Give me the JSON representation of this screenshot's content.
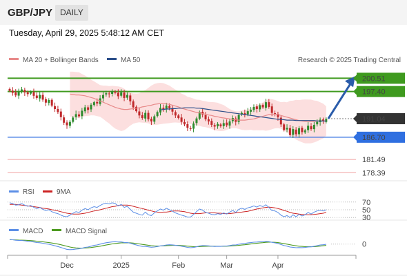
{
  "header": {
    "symbol": "GBP/JPY",
    "period": "DAILY",
    "timestamp": "Tuesday, April 29, 2025 5:48:12 AM CET"
  },
  "legend": {
    "ma20": "MA 20 + Bollinger Bands",
    "ma50": "MA 50",
    "credit": "Research © 2025 Trading Central",
    "rsi": "RSI",
    "rsi_ma": "9MA",
    "macd": "MACD",
    "macd_signal": "MACD Signal"
  },
  "colors": {
    "ma20": "#e88a8a",
    "ma50": "#2c4f8a",
    "bands": "#fbd9d9",
    "resistance": "#3f9a1f",
    "support": "#2f6fe0",
    "target_low": "#e36060",
    "current": "#333333",
    "bull": "#2e8b2e",
    "bear": "#c0292b",
    "rsi": "#5b8ee6",
    "rsi_ma": "#cc2222",
    "macd": "#5b8ee6",
    "macd_signal": "#4c9a1f",
    "arrow": "#2a5caa"
  },
  "chart_data": [
    {
      "type": "candlestick",
      "title": "GBP/JPY",
      "ylim": [
        176.5,
        203.0
      ],
      "x_ticks": [
        "Dec",
        "2025",
        "Feb",
        "Mar",
        "Apr"
      ],
      "price_levels": [
        {
          "label": "200.51",
          "value": 200.51,
          "role": "resistance"
        },
        {
          "label": "197.40",
          "value": 197.4,
          "role": "resistance"
        },
        {
          "label": "191.04",
          "value": 191.04,
          "role": "current"
        },
        {
          "label": "186.70",
          "value": 186.7,
          "role": "support"
        },
        {
          "label": "181.49",
          "value": 181.49,
          "role": "support"
        },
        {
          "label": "178.39",
          "value": 178.39,
          "role": "support"
        }
      ],
      "closes": [
        197.6,
        197.1,
        196.5,
        197.4,
        197.9,
        197.2,
        196.8,
        197.3,
        196.4,
        195.9,
        196.6,
        195.5,
        194.8,
        195.4,
        194.1,
        193.3,
        192.6,
        191.4,
        190.1,
        189.5,
        190.3,
        191.3,
        192.1,
        191.6,
        192.9,
        193.7,
        193.1,
        194.3,
        194.9,
        194.6,
        195.8,
        196.6,
        197.0,
        196.8,
        197.5,
        197.1,
        196.3,
        197.2,
        195.9,
        196.6,
        195.1,
        193.7,
        192.8,
        191.8,
        191.2,
        192.4,
        190.9,
        190.4,
        191.6,
        192.6,
        193.6,
        193.1,
        194.1,
        193.5,
        192.7,
        191.8,
        191.2,
        190.3,
        189.7,
        188.9,
        188.7,
        189.9,
        191.1,
        192.6,
        192.0,
        190.9,
        190.4,
        189.6,
        189.2,
        189.8,
        189.3,
        190.0,
        189.5,
        190.4,
        191.2,
        190.3,
        191.9,
        192.4,
        192.0,
        192.8,
        193.1,
        193.8,
        193.3,
        194.2,
        193.7,
        194.9,
        193.8,
        192.4,
        192.1,
        191.4,
        189.7,
        188.4,
        188.9,
        187.2,
        188.6,
        187.4,
        188.8,
        187.9,
        188.3,
        189.4,
        188.6,
        189.6,
        190.3,
        190.8,
        190.4,
        191.0
      ],
      "ma20": [
        196.8,
        196.7,
        196.6,
        196.6,
        196.5,
        196.4,
        196.2,
        196.0,
        195.8,
        195.5,
        195.2,
        194.9,
        194.6,
        194.3,
        194.0,
        193.7,
        193.5,
        193.3,
        193.2,
        193.2,
        193.3,
        193.4,
        193.5,
        193.6,
        193.8,
        193.9,
        194.1,
        194.2,
        194.4,
        194.5,
        194.6,
        194.6,
        194.5,
        194.4,
        194.2,
        194.0,
        193.8,
        193.5,
        193.3,
        193.1,
        192.9,
        192.7,
        192.5,
        192.4,
        192.2,
        192.1,
        191.9,
        191.8,
        191.6,
        191.5,
        191.3,
        191.2,
        191.1,
        191.0,
        190.9,
        190.8,
        190.7,
        190.7,
        190.7,
        190.8,
        190.9,
        191.0,
        191.2,
        191.4,
        191.6,
        191.8,
        192.0,
        192.1,
        192.1,
        192.0,
        191.8,
        191.6,
        191.4,
        191.2,
        191.0,
        190.8,
        190.6,
        190.5,
        190.4,
        190.4,
        190.4,
        190.4,
        190.5,
        190.5,
        190.5,
        190.5
      ],
      "ma20_start_index": 20,
      "ma50": [
        193.1,
        193.2,
        193.3,
        193.3,
        193.4,
        193.4,
        193.5,
        193.5,
        193.6,
        193.6,
        193.6,
        193.6,
        193.5,
        193.5,
        193.4,
        193.3,
        193.2,
        193.1,
        193.0,
        192.9,
        192.8,
        192.7,
        192.6,
        192.5,
        192.4,
        192.3,
        192.2,
        192.1,
        192.0,
        191.9,
        191.8,
        191.7,
        191.6,
        191.5,
        191.4,
        191.3,
        191.2,
        191.1,
        191.0,
        190.9,
        190.9,
        190.8,
        190.7,
        190.7,
        190.7,
        190.6,
        190.6,
        190.6,
        190.6,
        190.6,
        190.6,
        190.6,
        190.5,
        190.5,
        190.5,
        190.5
      ],
      "ma50_start_index": 50,
      "projection": {
        "from": 191.04,
        "to": 200.51
      }
    },
    {
      "type": "line",
      "title": "RSI",
      "ylim": [
        25,
        75
      ],
      "levels": [
        {
          "label": "70",
          "value": 70
        },
        {
          "label": "50",
          "value": 50
        },
        {
          "label": "30",
          "value": 30
        }
      ],
      "series": [
        {
          "name": "RSI",
          "values": [
            68,
            66,
            62,
            63,
            66,
            62,
            59,
            61,
            56,
            53,
            56,
            51,
            48,
            50,
            45,
            42,
            40,
            36,
            33,
            32,
            36,
            41,
            45,
            43,
            49,
            53,
            50,
            55,
            58,
            56,
            61,
            65,
            67,
            65,
            68,
            66,
            60,
            64,
            56,
            59,
            51,
            44,
            41,
            38,
            36,
            44,
            37,
            35,
            42,
            47,
            52,
            49,
            54,
            50,
            46,
            42,
            39,
            36,
            34,
            31,
            31,
            38,
            45,
            52,
            49,
            43,
            41,
            38,
            37,
            40,
            38,
            42,
            39,
            44,
            48,
            43,
            51,
            54,
            51,
            55,
            57,
            60,
            57,
            61,
            58,
            63,
            56,
            48,
            47,
            43,
            36,
            32,
            35,
            30,
            37,
            32,
            38,
            34,
            37,
            43,
            39,
            44,
            47,
            49,
            47,
            50
          ]
        },
        {
          "name": "9MA",
          "values": [
            64,
            64,
            64,
            63,
            62,
            61,
            60,
            59,
            58,
            57,
            56,
            54,
            53,
            52,
            50,
            49,
            47,
            45,
            43,
            41,
            40,
            39,
            39,
            39,
            40,
            41,
            43,
            45,
            47,
            48,
            50,
            52,
            54,
            56,
            58,
            59,
            61,
            62,
            62,
            62,
            61,
            59,
            57,
            55,
            53,
            51,
            49,
            47,
            45,
            44,
            43,
            44,
            44,
            45,
            47,
            47,
            47,
            46,
            45,
            43,
            41,
            40,
            40,
            40,
            41,
            42,
            42,
            42,
            42,
            41,
            41,
            40,
            40,
            40,
            41,
            42,
            43,
            44,
            45,
            46,
            48,
            50,
            52,
            53,
            55,
            56,
            57,
            56,
            55,
            53,
            51,
            48,
            46,
            43,
            41,
            40,
            39,
            38,
            37,
            37,
            37,
            38,
            39,
            40,
            41,
            43
          ]
        }
      ]
    },
    {
      "type": "line",
      "title": "MACD",
      "ylim": [
        -2.2,
        1.8
      ],
      "levels": [
        {
          "label": "0",
          "value": 0
        }
      ],
      "series": [
        {
          "name": "MACD",
          "values": [
            1.0,
            0.95,
            0.85,
            0.8,
            0.8,
            0.72,
            0.62,
            0.58,
            0.46,
            0.34,
            0.3,
            0.18,
            0.04,
            -0.04,
            -0.2,
            -0.38,
            -0.55,
            -0.75,
            -0.98,
            -1.18,
            -1.25,
            -1.22,
            -1.12,
            -1.06,
            -0.92,
            -0.74,
            -0.66,
            -0.48,
            -0.3,
            -0.2,
            -0.02,
            0.16,
            0.3,
            0.38,
            0.48,
            0.52,
            0.46,
            0.48,
            0.36,
            0.32,
            0.18,
            -0.02,
            -0.2,
            -0.38,
            -0.52,
            -0.52,
            -0.62,
            -0.7,
            -0.66,
            -0.55,
            -0.4,
            -0.34,
            -0.2,
            -0.16,
            -0.18,
            -0.26,
            -0.36,
            -0.48,
            -0.6,
            -0.74,
            -0.82,
            -0.76,
            -0.62,
            -0.42,
            -0.34,
            -0.36,
            -0.4,
            -0.48,
            -0.54,
            -0.5,
            -0.52,
            -0.44,
            -0.44,
            -0.34,
            -0.22,
            -0.2,
            -0.05,
            0.08,
            0.14,
            0.24,
            0.32,
            0.42,
            0.44,
            0.52,
            0.52,
            0.6,
            0.54,
            0.38,
            0.26,
            0.12,
            -0.1,
            -0.34,
            -0.46,
            -0.66,
            -0.72,
            -0.82,
            -0.78,
            -0.8,
            -0.76,
            -0.64,
            -0.62,
            -0.5,
            -0.36,
            -0.22,
            -0.16,
            -0.06
          ]
        },
        {
          "name": "MACD Signal",
          "values": [
            0.95,
            0.95,
            0.93,
            0.9,
            0.88,
            0.85,
            0.81,
            0.77,
            0.71,
            0.64,
            0.58,
            0.51,
            0.42,
            0.33,
            0.23,
            0.12,
            0.0,
            -0.15,
            -0.32,
            -0.5,
            -0.66,
            -0.78,
            -0.86,
            -0.91,
            -0.92,
            -0.89,
            -0.85,
            -0.77,
            -0.68,
            -0.59,
            -0.47,
            -0.34,
            -0.21,
            -0.09,
            0.03,
            0.13,
            0.2,
            0.26,
            0.28,
            0.29,
            0.27,
            0.21,
            0.13,
            0.03,
            -0.08,
            -0.17,
            -0.26,
            -0.35,
            -0.41,
            -0.44,
            -0.43,
            -0.41,
            -0.37,
            -0.33,
            -0.3,
            -0.29,
            -0.3,
            -0.34,
            -0.39,
            -0.46,
            -0.53,
            -0.58,
            -0.59,
            -0.56,
            -0.52,
            -0.49,
            -0.47,
            -0.47,
            -0.48,
            -0.49,
            -0.49,
            -0.48,
            -0.47,
            -0.44,
            -0.4,
            -0.36,
            -0.3,
            -0.22,
            -0.15,
            -0.07,
            0.01,
            0.09,
            0.17,
            0.25,
            0.31,
            0.38,
            0.41,
            0.41,
            0.38,
            0.32,
            0.22,
            0.1,
            -0.02,
            -0.16,
            -0.28,
            -0.39,
            -0.47,
            -0.53,
            -0.58,
            -0.59,
            -0.6,
            -0.58,
            -0.53,
            -0.46,
            -0.38,
            -0.3
          ]
        }
      ]
    }
  ]
}
